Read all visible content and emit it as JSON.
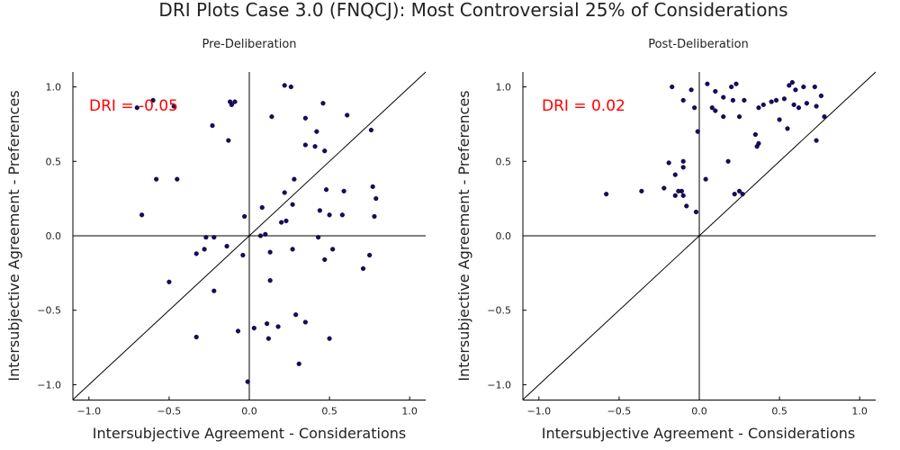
{
  "title": "DRI Plots Case 3.0 (FNQCJ): Most Controversial 25% of Considerations",
  "chart_data": [
    {
      "type": "scatter",
      "subtitle": "Pre-Deliberation",
      "xlabel": "Intersubjective Agreement - Considerations",
      "ylabel": "Intersubjective Agreement - Preferences",
      "xlim": [
        -1.1,
        1.1
      ],
      "ylim": [
        -1.1,
        1.1
      ],
      "xticks": [
        -1.0,
        -0.5,
        0.0,
        0.5,
        1.0
      ],
      "xtick_labels": [
        "−1.0",
        "−0.5",
        "0.0",
        "0.5",
        "1.0"
      ],
      "yticks": [
        -1.0,
        -0.5,
        0.0,
        0.5,
        1.0
      ],
      "ytick_labels": [
        "−1.0",
        "−0.5",
        "0.0",
        "0.5",
        "1.0"
      ],
      "grid": false,
      "annotation": "DRI = -0.05",
      "point_color": "#1a0a5c",
      "points": [
        [
          -0.7,
          0.86
        ],
        [
          -0.6,
          0.91
        ],
        [
          -0.47,
          0.87
        ],
        [
          -0.12,
          0.9
        ],
        [
          -0.09,
          0.9
        ],
        [
          -0.11,
          0.88
        ],
        [
          -0.23,
          0.74
        ],
        [
          -0.13,
          0.64
        ],
        [
          0.22,
          1.01
        ],
        [
          0.26,
          1.0
        ],
        [
          0.14,
          0.8
        ],
        [
          0.35,
          0.79
        ],
        [
          0.46,
          0.89
        ],
        [
          0.61,
          0.81
        ],
        [
          0.42,
          0.7
        ],
        [
          0.35,
          0.61
        ],
        [
          0.41,
          0.6
        ],
        [
          0.47,
          0.57
        ],
        [
          0.76,
          0.71
        ],
        [
          -0.58,
          0.38
        ],
        [
          -0.45,
          0.38
        ],
        [
          0.28,
          0.38
        ],
        [
          0.22,
          0.29
        ],
        [
          0.48,
          0.31
        ],
        [
          0.59,
          0.3
        ],
        [
          0.77,
          0.33
        ],
        [
          0.79,
          0.25
        ],
        [
          0.08,
          0.19
        ],
        [
          0.27,
          0.21
        ],
        [
          0.2,
          0.09
        ],
        [
          0.23,
          0.1
        ],
        [
          -0.67,
          0.14
        ],
        [
          -0.03,
          0.13
        ],
        [
          0.44,
          0.17
        ],
        [
          0.5,
          0.14
        ],
        [
          0.58,
          0.14
        ],
        [
          0.78,
          0.13
        ],
        [
          -0.27,
          -0.01
        ],
        [
          -0.22,
          -0.01
        ],
        [
          0.07,
          0.0
        ],
        [
          0.1,
          0.01
        ],
        [
          0.43,
          -0.01
        ],
        [
          -0.28,
          -0.09
        ],
        [
          -0.33,
          -0.12
        ],
        [
          -0.14,
          -0.07
        ],
        [
          -0.04,
          -0.13
        ],
        [
          0.13,
          -0.11
        ],
        [
          0.27,
          -0.09
        ],
        [
          0.52,
          -0.09
        ],
        [
          0.47,
          -0.16
        ],
        [
          0.75,
          -0.13
        ],
        [
          0.71,
          -0.22
        ],
        [
          -0.5,
          -0.31
        ],
        [
          -0.22,
          -0.37
        ],
        [
          0.13,
          -0.3
        ],
        [
          0.29,
          -0.53
        ],
        [
          0.35,
          -0.58
        ],
        [
          0.11,
          -0.59
        ],
        [
          0.18,
          -0.61
        ],
        [
          0.03,
          -0.62
        ],
        [
          -0.07,
          -0.64
        ],
        [
          -0.33,
          -0.68
        ],
        [
          0.12,
          -0.69
        ],
        [
          0.5,
          -0.69
        ],
        [
          0.31,
          -0.86
        ],
        [
          -0.01,
          -0.98
        ]
      ]
    },
    {
      "type": "scatter",
      "subtitle": "Post-Deliberation",
      "xlabel": "Intersubjective Agreement - Considerations",
      "ylabel": "Intersubjective Agreement - Preferences",
      "xlim": [
        -1.1,
        1.1
      ],
      "ylim": [
        -1.1,
        1.1
      ],
      "xticks": [
        -1.0,
        -0.5,
        0.0,
        0.5,
        1.0
      ],
      "xtick_labels": [
        "−1.0",
        "−0.5",
        "0.0",
        "0.5",
        "1.0"
      ],
      "yticks": [
        -1.0,
        -0.5,
        0.0,
        0.5,
        1.0
      ],
      "ytick_labels": [
        "−1.0",
        "−0.5",
        "0.0",
        "0.5",
        "1.0"
      ],
      "grid": false,
      "annotation": "DRI = 0.02",
      "point_color": "#1a0a5c",
      "points": [
        [
          -0.17,
          1.0
        ],
        [
          -0.05,
          0.98
        ],
        [
          0.05,
          1.02
        ],
        [
          0.2,
          1.0
        ],
        [
          0.23,
          1.02
        ],
        [
          0.1,
          0.97
        ],
        [
          -0.1,
          0.91
        ],
        [
          0.15,
          0.93
        ],
        [
          0.21,
          0.91
        ],
        [
          0.28,
          0.91
        ],
        [
          0.37,
          0.86
        ],
        [
          0.4,
          0.88
        ],
        [
          0.45,
          0.9
        ],
        [
          0.48,
          0.91
        ],
        [
          0.53,
          0.92
        ],
        [
          0.56,
          1.01
        ],
        [
          0.58,
          1.03
        ],
        [
          0.6,
          0.98
        ],
        [
          0.65,
          1.0
        ],
        [
          0.67,
          0.89
        ],
        [
          0.72,
          1.0
        ],
        [
          0.76,
          0.94
        ],
        [
          0.73,
          0.87
        ],
        [
          0.59,
          0.88
        ],
        [
          0.62,
          0.86
        ],
        [
          0.08,
          0.86
        ],
        [
          0.1,
          0.84
        ],
        [
          0.15,
          0.8
        ],
        [
          0.25,
          0.8
        ],
        [
          0.5,
          0.78
        ],
        [
          0.55,
          0.72
        ],
        [
          0.78,
          0.8
        ],
        [
          -0.03,
          0.86
        ],
        [
          -0.01,
          0.7
        ],
        [
          0.35,
          0.68
        ],
        [
          0.36,
          0.6
        ],
        [
          0.37,
          0.62
        ],
        [
          0.73,
          0.64
        ],
        [
          -0.1,
          0.5
        ],
        [
          -0.19,
          0.49
        ],
        [
          -0.1,
          0.46
        ],
        [
          0.18,
          0.5
        ],
        [
          -0.15,
          0.41
        ],
        [
          0.04,
          0.38
        ],
        [
          -0.58,
          0.28
        ],
        [
          -0.36,
          0.3
        ],
        [
          -0.22,
          0.32
        ],
        [
          -0.13,
          0.3
        ],
        [
          -0.11,
          0.3
        ],
        [
          -0.1,
          0.27
        ],
        [
          -0.15,
          0.27
        ],
        [
          0.22,
          0.28
        ],
        [
          0.25,
          0.3
        ],
        [
          0.27,
          0.28
        ],
        [
          -0.08,
          0.2
        ],
        [
          -0.02,
          0.16
        ]
      ]
    }
  ]
}
